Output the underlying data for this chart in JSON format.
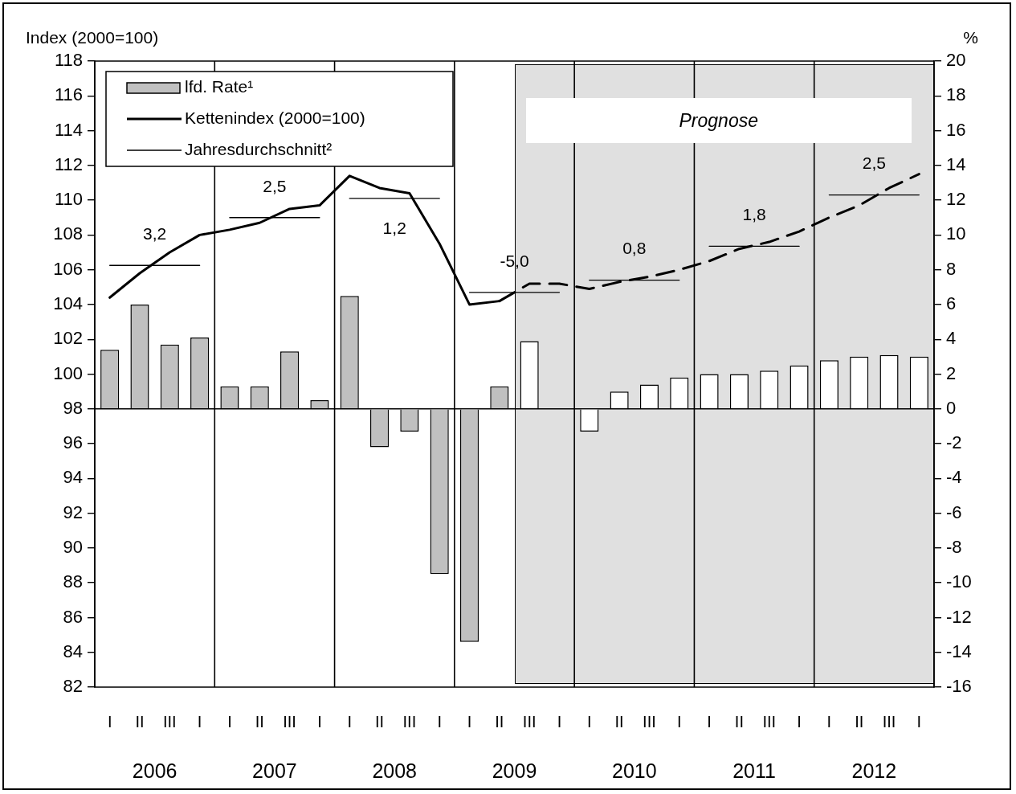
{
  "chart_data": {
    "type": "bar",
    "ylabel": "Index (2000=100)",
    "y2label": "%",
    "categories": [
      "I",
      "II",
      "III",
      "I",
      "I",
      "II",
      "III",
      "I",
      "I",
      "II",
      "III",
      "I",
      "I",
      "II",
      "III",
      "I",
      "I",
      "II",
      "III",
      "I",
      "I",
      "II",
      "III",
      "I",
      "I",
      "II",
      "III",
      "I"
    ],
    "ylim": [
      82,
      118
    ],
    "yticks": [
      82,
      84,
      86,
      88,
      90,
      92,
      94,
      96,
      98,
      100,
      102,
      104,
      106,
      108,
      110,
      112,
      114,
      116,
      118
    ],
    "y2lim": [
      -16,
      20
    ],
    "y2ticks": [
      -16,
      -14,
      -12,
      -10,
      -8,
      -6,
      -4,
      -2,
      0,
      2,
      4,
      6,
      8,
      10,
      12,
      14,
      16,
      18,
      20
    ],
    "series": [
      {
        "name": "lfd. Rate¹",
        "axis": "y2",
        "color": "#c0c0c0",
        "colors": [
          "#c0c0c0",
          "#c0c0c0",
          "#c0c0c0",
          "#c0c0c0",
          "#c0c0c0",
          "#c0c0c0",
          "#c0c0c0",
          "#c0c0c0",
          "#c0c0c0",
          "#c0c0c0",
          "#c0c0c0",
          "#c0c0c0",
          "#c0c0c0",
          "#c0c0c0",
          "#ffffff",
          "#ffffff",
          "#ffffff",
          "#ffffff",
          "#ffffff",
          "#ffffff",
          "#ffffff",
          "#ffffff",
          "#ffffff",
          "#ffffff",
          "#ffffff",
          "#ffffff",
          "#ffffff",
          "#ffffff"
        ],
        "values": [
          3.4,
          6.0,
          3.7,
          4.1,
          1.3,
          1.3,
          3.3,
          0.5,
          6.5,
          -2.2,
          -1.3,
          -9.5,
          -13.4,
          1.3,
          3.9,
          0,
          -1.3,
          1.0,
          1.4,
          1.8,
          2.0,
          2.0,
          2.2,
          2.5,
          2.8,
          3.0,
          3.1,
          3.0
        ]
      },
      {
        "name": "Kettenindex (2000=100)",
        "type": "line",
        "color": "#000000",
        "line_style": "solid",
        "values": [
          104.4,
          105.8,
          107.0,
          108.0,
          108.3,
          108.7,
          109.5,
          109.7,
          111.4,
          110.7,
          110.4,
          107.5,
          104.0,
          104.2,
          null,
          null,
          null,
          null,
          null,
          null,
          null,
          null,
          null,
          null,
          null,
          null,
          null,
          null
        ]
      },
      {
        "type": "line",
        "color": "#000000",
        "line_style": "dashed",
        "values": [
          null,
          null,
          null,
          null,
          null,
          null,
          null,
          null,
          null,
          null,
          null,
          null,
          null,
          104.2,
          105.2,
          105.2,
          104.9,
          105.3,
          105.6,
          106.0,
          106.5,
          107.2,
          107.6,
          108.2,
          109.0,
          109.7,
          110.7,
          111.5
        ]
      },
      {
        "name": "Jahresdurchschnitt²",
        "type": "line",
        "color": "#000000",
        "line_style": "solid",
        "values": [
          106.25,
          106.25,
          106.25,
          106.25,
          null,
          null,
          null,
          null,
          null,
          null,
          null,
          null,
          null,
          null,
          null,
          null,
          null,
          null,
          null,
          null,
          null,
          null,
          null,
          null,
          null,
          null,
          null,
          null
        ]
      },
      {
        "type": "line",
        "color": "#000000",
        "line_style": "solid",
        "values": [
          null,
          null,
          null,
          null,
          109.0,
          109.0,
          109.0,
          109.0,
          null,
          null,
          null,
          null,
          null,
          null,
          null,
          null,
          null,
          null,
          null,
          null,
          null,
          null,
          null,
          null,
          null,
          null,
          null,
          null
        ]
      },
      {
        "type": "line",
        "color": "#000000",
        "line_style": "solid",
        "values": [
          null,
          null,
          null,
          null,
          null,
          null,
          null,
          null,
          110.1,
          110.1,
          110.1,
          110.1,
          null,
          null,
          null,
          null,
          null,
          null,
          null,
          null,
          null,
          null,
          null,
          null,
          null,
          null,
          null,
          null
        ]
      },
      {
        "type": "line",
        "color": "#000000",
        "line_style": "solid",
        "values": [
          null,
          null,
          null,
          null,
          null,
          null,
          null,
          null,
          null,
          null,
          null,
          null,
          104.7,
          104.7,
          104.7,
          104.7,
          null,
          null,
          null,
          null,
          null,
          null,
          null,
          null,
          null,
          null,
          null,
          null
        ]
      },
      {
        "type": "line",
        "color": "#000000",
        "line_style": "solid",
        "values": [
          null,
          null,
          null,
          null,
          null,
          null,
          null,
          null,
          null,
          null,
          null,
          null,
          null,
          null,
          null,
          null,
          105.4,
          105.4,
          105.4,
          105.4,
          null,
          null,
          null,
          null,
          null,
          null,
          null,
          null
        ]
      },
      {
        "type": "line",
        "color": "#000000",
        "line_style": "solid",
        "values": [
          null,
          null,
          null,
          null,
          null,
          null,
          null,
          null,
          null,
          null,
          null,
          null,
          null,
          null,
          null,
          null,
          null,
          null,
          null,
          null,
          107.35,
          107.35,
          107.35,
          107.35,
          null,
          null,
          null,
          null
        ]
      },
      {
        "type": "line",
        "color": "#000000",
        "line_style": "solid",
        "values": [
          null,
          null,
          null,
          null,
          null,
          null,
          null,
          null,
          null,
          null,
          null,
          null,
          null,
          null,
          null,
          null,
          null,
          null,
          null,
          null,
          null,
          null,
          null,
          null,
          110.3,
          110.3,
          110.3,
          110.3
        ]
      }
    ],
    "ref_lines": [
      {
        "axis": "y2",
        "value": 0
      }
    ],
    "annotations": [
      "3,2",
      "2,5",
      "1,2",
      "-5,0",
      "0,8",
      "1,8",
      "2,5",
      "2006",
      "2007",
      "2008",
      "2009",
      "2010",
      "2011",
      "2012",
      "Prognose"
    ],
    "legend": "top left",
    "grid": false,
    "marker": "none"
  }
}
